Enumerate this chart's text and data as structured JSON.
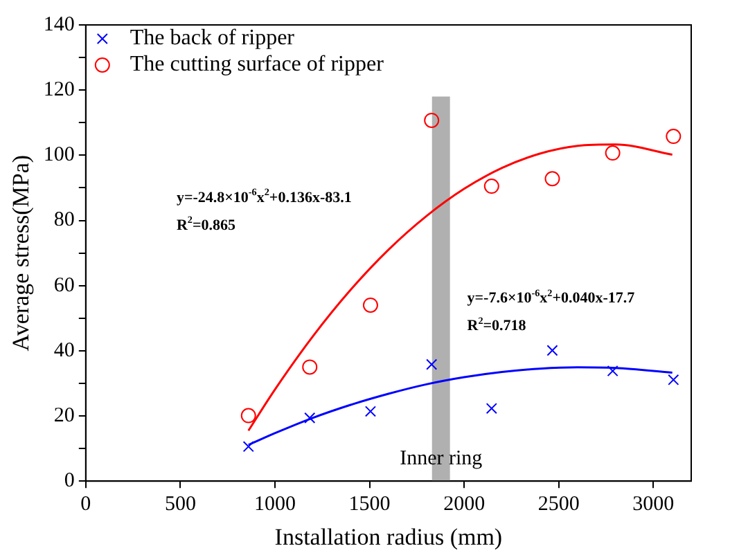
{
  "chart_data": {
    "type": "scatter",
    "xlabel": "Installation radius (mm)",
    "ylabel": "Average stress(MPa)",
    "xlim": [
      0,
      3200
    ],
    "xticks": [
      0,
      500,
      1000,
      1500,
      2000,
      2500,
      3000
    ],
    "ylim": [
      0,
      140
    ],
    "yticks": [
      0,
      {
        "value": 10,
        "label": null
      },
      20,
      {
        "value": 30,
        "label": null
      },
      40,
      {
        "value": 50,
        "label": null
      },
      60,
      {
        "value": 70,
        "label": null
      },
      80,
      {
        "value": 90,
        "label": null
      },
      100,
      {
        "value": 110,
        "label": null
      },
      120,
      {
        "value": 130,
        "label": null
      },
      140
    ],
    "x": [
      860,
      1184,
      1505,
      1828,
      2145,
      2466,
      2785,
      3106
    ],
    "series": [
      {
        "name": "The back of ripper",
        "color": "#0000ff",
        "marker": "cross",
        "values": [
          10.6,
          19.4,
          21.4,
          35.8,
          22.3,
          40.1,
          33.8,
          31.1
        ]
      },
      {
        "name": "The cutting surface of ripper",
        "color": "#ff0000",
        "marker": "circle",
        "values": [
          20.1,
          35,
          54,
          110.7,
          90.5,
          92.8,
          100.7,
          105.8
        ]
      },
      {
        "type": "line",
        "color": "#ff0000",
        "marker": "none",
        "x": [
          860,
          1000,
          1200,
          1400,
          1600,
          1800,
          2000,
          2200,
          2400,
          2600,
          2800,
          3100
        ],
        "values": [
          15.5,
          28.1,
          44.4,
          58.7,
          71.0,
          81.3,
          89.7,
          96.1,
          100.5,
          102.9,
          103.3,
          100.2
        ]
      },
      {
        "type": "line",
        "color": "#0000ff",
        "marker": "none",
        "x": [
          860,
          1000,
          1200,
          1400,
          1600,
          1800,
          2000,
          2200,
          2400,
          2600,
          2800,
          3100
        ],
        "values": [
          11.1,
          14.7,
          19.4,
          23.4,
          26.8,
          29.7,
          31.9,
          33.5,
          34.5,
          34.9,
          34.7,
          33.3
        ]
      }
    ],
    "bands": [
      {
        "axis": "x",
        "from": 1830,
        "to": 1925,
        "label": "Inner ring",
        "color": "#b0b0b0"
      }
    ],
    "annotations": [
      "y=-24.8×10$^{-6}$x$^{2}$+0.136x-83.1",
      "R$^{2}$=0.865",
      "y=-7.6×10$^{-6}$x$^{2}$+0.040x-17.7",
      "R$^{2}$=0.718"
    ],
    "legend": "top left",
    "grid": false
  }
}
